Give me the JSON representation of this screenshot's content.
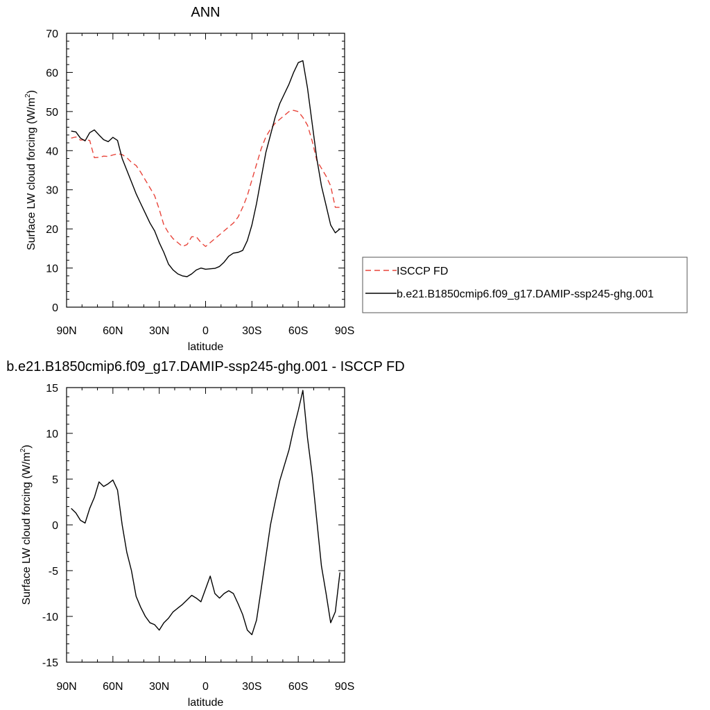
{
  "chart_data": [
    {
      "type": "line",
      "title": "ANN",
      "xlabel": "latitude",
      "ylabel": "Surface LW cloud forcing (W/m",
      "ylabel_sup": "2",
      "ylabel_end": ")",
      "xlim": [
        90,
        -90
      ],
      "ylim": [
        0,
        70
      ],
      "x_ticks": [
        90,
        60,
        30,
        0,
        -30,
        -60,
        -90
      ],
      "x_tick_labels": [
        "90N",
        "60N",
        "30N",
        "0",
        "30S",
        "60S",
        "90S"
      ],
      "y_ticks": [
        0,
        10,
        20,
        30,
        40,
        50,
        60,
        70
      ],
      "y_tick_labels": [
        "0",
        "10",
        "20",
        "30",
        "40",
        "50",
        "60",
        "70"
      ],
      "legend_placement": "right",
      "series": [
        {
          "name": "ISCCP FD",
          "color": "#e8443a",
          "dash": "dashed",
          "x": [
            87,
            84,
            81,
            78,
            75,
            72,
            69,
            66,
            63,
            60,
            57,
            54,
            51,
            48,
            45,
            42,
            39,
            36,
            33,
            30,
            27,
            24,
            21,
            18,
            15,
            12,
            9,
            6,
            3,
            0,
            -3,
            -6,
            -9,
            -12,
            -15,
            -18,
            -21,
            -24,
            -27,
            -30,
            -33,
            -36,
            -39,
            -42,
            -45,
            -48,
            -51,
            -54,
            -57,
            -60,
            -63,
            -66,
            -69,
            -72,
            -75,
            -78,
            -81,
            -84,
            -87
          ],
          "y": [
            43.2,
            43.5,
            42.7,
            42.8,
            42.6,
            38.2,
            38.3,
            38.6,
            38.5,
            38.9,
            39.2,
            39.0,
            38.2,
            37.0,
            36.2,
            34.5,
            32.5,
            30.5,
            28.5,
            25.0,
            21.0,
            19.0,
            17.5,
            16.5,
            15.5,
            16.0,
            18.0,
            18.0,
            16.5,
            15.5,
            16.5,
            17.5,
            18.5,
            19.5,
            20.5,
            21.5,
            23.0,
            25.5,
            28.5,
            32.5,
            36.5,
            40.5,
            43.5,
            45.5,
            47.0,
            48.0,
            49.0,
            50.0,
            50.3,
            50.0,
            48.5,
            46.5,
            42.5,
            37.5,
            35.5,
            33.5,
            31.0,
            25.5,
            25.5
          ]
        },
        {
          "name": "b.e21.B1850cmip6.f09_g17.DAMIP-ssp245-ghg.001",
          "color": "#000000",
          "dash": "solid",
          "x": [
            87,
            84,
            81,
            78,
            75,
            72,
            69,
            66,
            63,
            60,
            57,
            54,
            51,
            48,
            45,
            42,
            39,
            36,
            33,
            30,
            27,
            24,
            21,
            18,
            15,
            12,
            9,
            6,
            3,
            0,
            -3,
            -6,
            -9,
            -12,
            -15,
            -18,
            -21,
            -24,
            -27,
            -30,
            -33,
            -36,
            -39,
            -42,
            -45,
            -48,
            -51,
            -54,
            -57,
            -60,
            -63,
            -66,
            -69,
            -72,
            -75,
            -78,
            -81,
            -84,
            -87
          ],
          "y": [
            45.0,
            44.8,
            43.2,
            42.5,
            44.6,
            45.3,
            44.0,
            42.8,
            42.3,
            43.4,
            42.6,
            38.0,
            35.0,
            32.0,
            29.0,
            26.5,
            24.0,
            21.5,
            19.5,
            16.5,
            14.0,
            11.0,
            9.5,
            8.5,
            8.0,
            7.8,
            8.5,
            9.5,
            10.0,
            9.7,
            9.8,
            9.9,
            10.4,
            11.5,
            13.0,
            13.8,
            14.0,
            14.5,
            17.0,
            21.0,
            26.5,
            33.0,
            39.5,
            44.0,
            48.5,
            52.0,
            54.5,
            57.0,
            60.0,
            62.5,
            63.0,
            56.0,
            47.0,
            38.0,
            31.0,
            26.0,
            21.0,
            19.0,
            20.0
          ]
        }
      ]
    },
    {
      "type": "line",
      "title": "b.e21.B1850cmip6.f09_g17.DAMIP-ssp245-ghg.001 - ISCCP FD",
      "xlabel": "latitude",
      "ylabel": "Surface LW cloud forcing (W/m",
      "ylabel_sup": "2",
      "ylabel_end": ")",
      "xlim": [
        90,
        -90
      ],
      "ylim": [
        -15,
        15
      ],
      "x_ticks": [
        90,
        60,
        30,
        0,
        -30,
        -60,
        -90
      ],
      "x_tick_labels": [
        "90N",
        "60N",
        "30N",
        "0",
        "30S",
        "60S",
        "90S"
      ],
      "y_ticks": [
        -15,
        -10,
        -5,
        0,
        5,
        10,
        15
      ],
      "y_tick_labels": [
        "-15",
        "-10",
        "-5",
        "0",
        "5",
        "10",
        "15"
      ],
      "series": [
        {
          "color": "#000000",
          "dash": "solid",
          "x": [
            87,
            84,
            81,
            78,
            75,
            72,
            69,
            66,
            63,
            60,
            57,
            54,
            51,
            48,
            45,
            42,
            39,
            36,
            33,
            30,
            27,
            24,
            21,
            18,
            15,
            12,
            9,
            6,
            3,
            0,
            -3,
            -6,
            -9,
            -12,
            -15,
            -18,
            -21,
            -24,
            -27,
            -30,
            -33,
            -36,
            -39,
            -42,
            -45,
            -48,
            -51,
            -54,
            -57,
            -60,
            -63,
            -66,
            -69,
            -72,
            -75,
            -78,
            -81,
            -84,
            -87
          ],
          "y": [
            1.8,
            1.3,
            0.5,
            0.2,
            1.8,
            3.0,
            4.7,
            4.2,
            4.5,
            4.9,
            3.8,
            0.0,
            -3.0,
            -5.0,
            -7.8,
            -9.0,
            -10.0,
            -10.7,
            -10.9,
            -11.5,
            -10.7,
            -10.2,
            -9.5,
            -9.1,
            -8.7,
            -8.2,
            -7.7,
            -8.0,
            -8.4,
            -7.0,
            -5.6,
            -7.5,
            -8.0,
            -7.5,
            -7.2,
            -7.5,
            -8.6,
            -9.8,
            -11.5,
            -12.0,
            -10.4,
            -7.0,
            -3.5,
            0.0,
            2.5,
            4.8,
            6.5,
            8.2,
            10.5,
            12.5,
            14.7,
            9.5,
            5.5,
            0.5,
            -4.5,
            -7.5,
            -10.7,
            -9.5,
            -5.2
          ]
        }
      ]
    }
  ]
}
